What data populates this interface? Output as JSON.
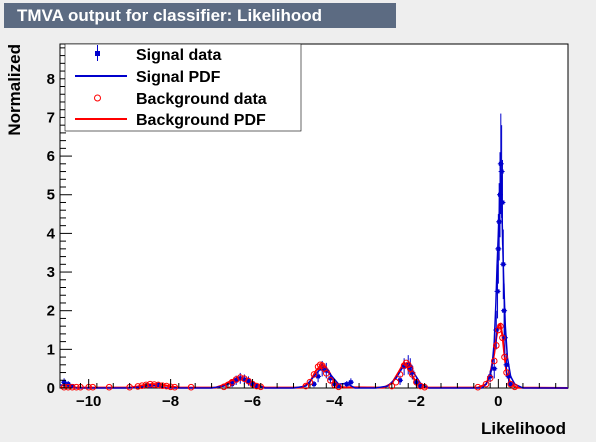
{
  "title": "TMVA output for classifier: Likelihood",
  "chart_data": {
    "type": "line",
    "xlabel": "Likelihood",
    "ylabel": "Normalized",
    "xlim": [
      -10.7,
      1.7
    ],
    "ylim": [
      0,
      8.9
    ],
    "x_ticks": [
      -10,
      -8,
      -6,
      -4,
      -2,
      0
    ],
    "x_tick_labels": [
      "−10",
      "−8",
      "−6",
      "−4",
      "−2",
      "0"
    ],
    "y_ticks": [
      0,
      1,
      2,
      3,
      4,
      5,
      6,
      7,
      8
    ],
    "y_tick_labels": [
      "0",
      "1",
      "2",
      "3",
      "4",
      "5",
      "6",
      "7",
      "8"
    ],
    "grid": false,
    "legend_position": "top-left",
    "colors": {
      "signal": "#0000cc",
      "background": "#ff0000"
    },
    "legend": [
      "Signal data",
      "Signal PDF",
      "Background data",
      "Background PDF"
    ],
    "series": [
      {
        "name": "Signal data",
        "style": "markers-errorbars",
        "x": [
          -10.6,
          -10.5,
          -10.4,
          -8.5,
          -8.3,
          -6.5,
          -6.4,
          -6.3,
          -6.2,
          -6.1,
          -6.0,
          -5.9,
          -4.5,
          -4.4,
          -4.3,
          -4.2,
          -4.1,
          -4.0,
          -3.9,
          -3.7,
          -3.6,
          -2.4,
          -2.3,
          -2.2,
          -2.15,
          -2.1,
          -2.0,
          -1.9,
          -0.2,
          -0.1,
          -0.05,
          -0.02,
          0.0,
          0.02,
          0.04,
          0.06,
          0.08,
          0.1,
          0.12,
          0.14,
          0.16,
          0.2,
          0.25,
          0.3
        ],
        "y": [
          0.15,
          0.1,
          0.05,
          0.05,
          0.08,
          0.1,
          0.2,
          0.25,
          0.22,
          0.18,
          0.1,
          0.05,
          0.1,
          0.3,
          0.5,
          0.45,
          0.25,
          0.1,
          0.05,
          0.1,
          0.15,
          0.2,
          0.55,
          0.6,
          0.55,
          0.4,
          0.15,
          0.05,
          0.3,
          0.5,
          1.5,
          2.5,
          3.6,
          4.3,
          5.0,
          5.8,
          5.6,
          4.8,
          3.2,
          2.0,
          1.3,
          0.6,
          0.3,
          0.1
        ],
        "yerr": [
          0.1,
          0.08,
          0.05,
          0.05,
          0.06,
          0.08,
          0.12,
          0.14,
          0.13,
          0.12,
          0.08,
          0.05,
          0.08,
          0.15,
          0.2,
          0.2,
          0.14,
          0.08,
          0.05,
          0.08,
          0.1,
          0.12,
          0.22,
          0.25,
          0.22,
          0.18,
          0.1,
          0.05,
          0.15,
          0.25,
          0.5,
          0.7,
          0.9,
          1.0,
          1.1,
          1.3,
          1.2,
          1.1,
          0.9,
          0.7,
          0.5,
          0.3,
          0.18,
          0.08
        ]
      },
      {
        "name": "Signal PDF",
        "style": "line",
        "x": [
          -10.7,
          -10.5,
          -10.3,
          -9.0,
          -8.7,
          -8.5,
          -8.3,
          -8.1,
          -7.0,
          -6.7,
          -6.5,
          -6.3,
          -6.1,
          -5.9,
          -5.7,
          -5.0,
          -4.7,
          -4.5,
          -4.3,
          -4.1,
          -3.9,
          -3.7,
          -3.5,
          -3.0,
          -2.7,
          -2.5,
          -2.3,
          -2.1,
          -1.9,
          -1.7,
          -1.0,
          -0.4,
          -0.3,
          -0.2,
          -0.15,
          -0.1,
          -0.06,
          -0.03,
          0.0,
          0.02,
          0.04,
          0.06,
          0.08,
          0.1,
          0.13,
          0.17,
          0.22,
          0.3,
          0.4,
          0.6,
          1.7
        ],
        "y": [
          0.08,
          0.05,
          0.0,
          0.0,
          0.03,
          0.07,
          0.05,
          0.0,
          0.0,
          0.05,
          0.15,
          0.25,
          0.2,
          0.08,
          0.0,
          0.0,
          0.05,
          0.3,
          0.55,
          0.35,
          0.1,
          0.12,
          0.0,
          0.0,
          0.05,
          0.25,
          0.6,
          0.45,
          0.12,
          0.0,
          0.0,
          0.0,
          0.1,
          0.3,
          0.6,
          1.2,
          2.2,
          3.2,
          4.0,
          4.5,
          5.2,
          5.5,
          5.0,
          4.0,
          2.8,
          1.6,
          0.8,
          0.3,
          0.1,
          0.0,
          0.0
        ]
      },
      {
        "name": "Background data",
        "style": "open-markers",
        "x": [
          -10.6,
          -10.5,
          -10.4,
          -10.3,
          -10.2,
          -10.0,
          -9.9,
          -9.5,
          -9.0,
          -8.8,
          -8.7,
          -8.6,
          -8.5,
          -8.4,
          -8.3,
          -8.2,
          -8.1,
          -8.0,
          -7.9,
          -7.5,
          -6.7,
          -6.6,
          -6.5,
          -6.4,
          -6.3,
          -6.2,
          -6.1,
          -6.0,
          -5.9,
          -5.8,
          -4.7,
          -4.6,
          -4.5,
          -4.4,
          -4.35,
          -4.3,
          -4.25,
          -4.2,
          -4.1,
          -4.0,
          -3.9,
          -2.6,
          -2.5,
          -2.4,
          -2.3,
          -2.25,
          -2.2,
          -2.15,
          -2.1,
          -2.0,
          -1.9,
          -1.8,
          -0.5,
          -0.3,
          -0.2,
          -0.1,
          -0.05,
          0.0,
          0.05,
          0.1,
          0.15,
          0.2,
          0.3,
          0.4
        ],
        "y": [
          0.02,
          0.02,
          0.02,
          0.02,
          0.02,
          0.02,
          0.02,
          0.02,
          0.02,
          0.04,
          0.06,
          0.08,
          0.1,
          0.09,
          0.08,
          0.06,
          0.05,
          0.03,
          0.02,
          0.02,
          0.03,
          0.08,
          0.15,
          0.22,
          0.27,
          0.24,
          0.18,
          0.1,
          0.05,
          0.03,
          0.05,
          0.15,
          0.35,
          0.55,
          0.6,
          0.58,
          0.5,
          0.38,
          0.2,
          0.08,
          0.03,
          0.05,
          0.15,
          0.35,
          0.58,
          0.65,
          0.6,
          0.5,
          0.35,
          0.15,
          0.05,
          0.02,
          0.02,
          0.1,
          0.25,
          0.7,
          1.1,
          1.5,
          1.6,
          1.3,
          0.8,
          0.4,
          0.1,
          0.03
        ]
      },
      {
        "name": "Background PDF",
        "style": "line",
        "x": [
          -10.7,
          -10.3,
          -9.0,
          -8.8,
          -8.6,
          -8.4,
          -8.2,
          -8.0,
          -7.8,
          -6.9,
          -6.7,
          -6.5,
          -6.3,
          -6.1,
          -5.9,
          -5.7,
          -4.8,
          -4.6,
          -4.45,
          -4.3,
          -4.15,
          -4.0,
          -3.85,
          -2.8,
          -2.6,
          -2.45,
          -2.3,
          -2.15,
          -2.0,
          -1.85,
          -0.5,
          -0.3,
          -0.2,
          -0.1,
          -0.05,
          0.0,
          0.05,
          0.1,
          0.15,
          0.2,
          0.3,
          0.45,
          1.7
        ],
        "y": [
          0.01,
          0.01,
          0.01,
          0.04,
          0.09,
          0.1,
          0.08,
          0.04,
          0.01,
          0.01,
          0.08,
          0.2,
          0.28,
          0.2,
          0.08,
          0.01,
          0.01,
          0.15,
          0.45,
          0.62,
          0.45,
          0.15,
          0.02,
          0.01,
          0.12,
          0.38,
          0.66,
          0.42,
          0.12,
          0.01,
          0.01,
          0.1,
          0.35,
          0.9,
          1.3,
          1.6,
          1.65,
          1.35,
          0.85,
          0.4,
          0.1,
          0.01,
          0.0
        ]
      }
    ]
  }
}
